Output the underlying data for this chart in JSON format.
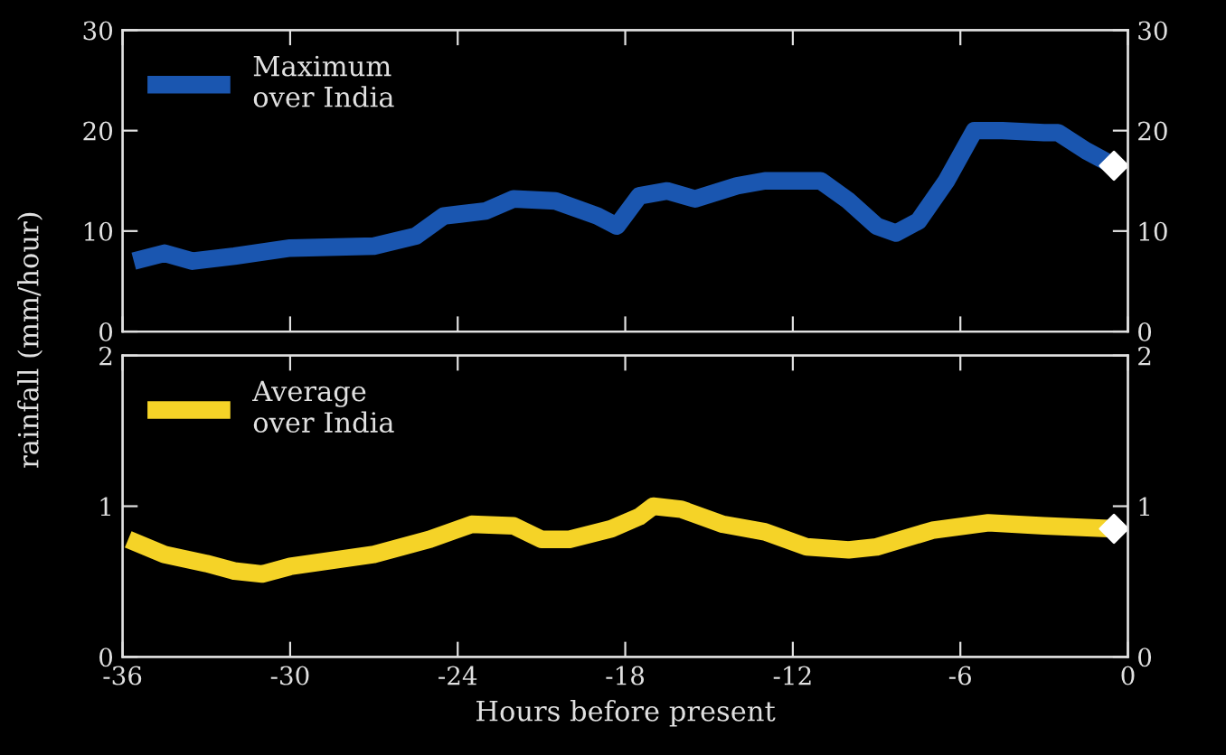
{
  "chart_data": [
    {
      "type": "line",
      "ylabel": "rainfall (mm/hour)",
      "xlim": [
        -36,
        0
      ],
      "xticks": [
        -36,
        -30,
        -24,
        -18,
        -12,
        -6,
        0
      ],
      "ylim": [
        0,
        30
      ],
      "yticks": [
        0,
        10,
        20,
        30
      ],
      "y2lim": [
        0,
        30
      ],
      "y2ticks": [
        0,
        10,
        20,
        30
      ],
      "tick_labels": "y",
      "legend": "top left",
      "grid": false,
      "line_style": "solid",
      "series": [
        {
          "name": "Maximum\nover India",
          "color": "#1a56b0",
          "x": [
            -35.6,
            -34.5,
            -33.5,
            -32,
            -30,
            -27,
            -25.5,
            -24.5,
            -23,
            -22,
            -20.5,
            -19,
            -18.3,
            -17.5,
            -16.5,
            -15.5,
            -14,
            -13,
            -11,
            -10,
            -9,
            -8.3,
            -7.5,
            -6.5,
            -5.5,
            -4.5,
            -3,
            -2.5,
            -1.5,
            -0.5
          ],
          "values": [
            7,
            7.8,
            7,
            7.5,
            8.3,
            8.5,
            9.5,
            11.5,
            12,
            13.2,
            13,
            11.5,
            10.5,
            13.5,
            14,
            13.2,
            14.5,
            15,
            15,
            13,
            10.5,
            9.8,
            11,
            15,
            20,
            20,
            19.8,
            19.8,
            18,
            16.5
          ]
        },
        {
          "type": "scatter",
          "color": "#ffffff",
          "marker": "diamond",
          "x": [
            -0.5
          ],
          "values": [
            16.5
          ]
        }
      ]
    },
    {
      "type": "line",
      "xlabel": "Hours before present",
      "xlim": [
        -36,
        0
      ],
      "xticks": [
        -36,
        -30,
        -24,
        -18,
        -12,
        -6,
        0
      ],
      "ylim": [
        0,
        2
      ],
      "yticks": [
        0,
        1,
        2
      ],
      "y2lim": [
        0,
        2
      ],
      "y2ticks": [
        0,
        1,
        2
      ],
      "legend": "top left",
      "grid": false,
      "line_style": "solid",
      "series": [
        {
          "name": "Average\nover India",
          "color": "#f5d327",
          "x": [
            -35.8,
            -34.5,
            -33,
            -32,
            -31,
            -30,
            -27,
            -25,
            -23.5,
            -22,
            -21,
            -20,
            -18.5,
            -17.5,
            -17,
            -16,
            -14.5,
            -13,
            -11.5,
            -10,
            -9,
            -7,
            -5,
            -3,
            -0.5
          ],
          "values": [
            0.78,
            0.68,
            0.62,
            0.57,
            0.55,
            0.6,
            0.68,
            0.78,
            0.88,
            0.87,
            0.78,
            0.78,
            0.85,
            0.93,
            1.0,
            0.98,
            0.88,
            0.83,
            0.73,
            0.71,
            0.73,
            0.84,
            0.89,
            0.87,
            0.85
          ]
        },
        {
          "type": "scatter",
          "color": "#ffffff",
          "marker": "diamond",
          "x": [
            -0.5
          ],
          "values": [
            0.85
          ]
        }
      ]
    }
  ]
}
